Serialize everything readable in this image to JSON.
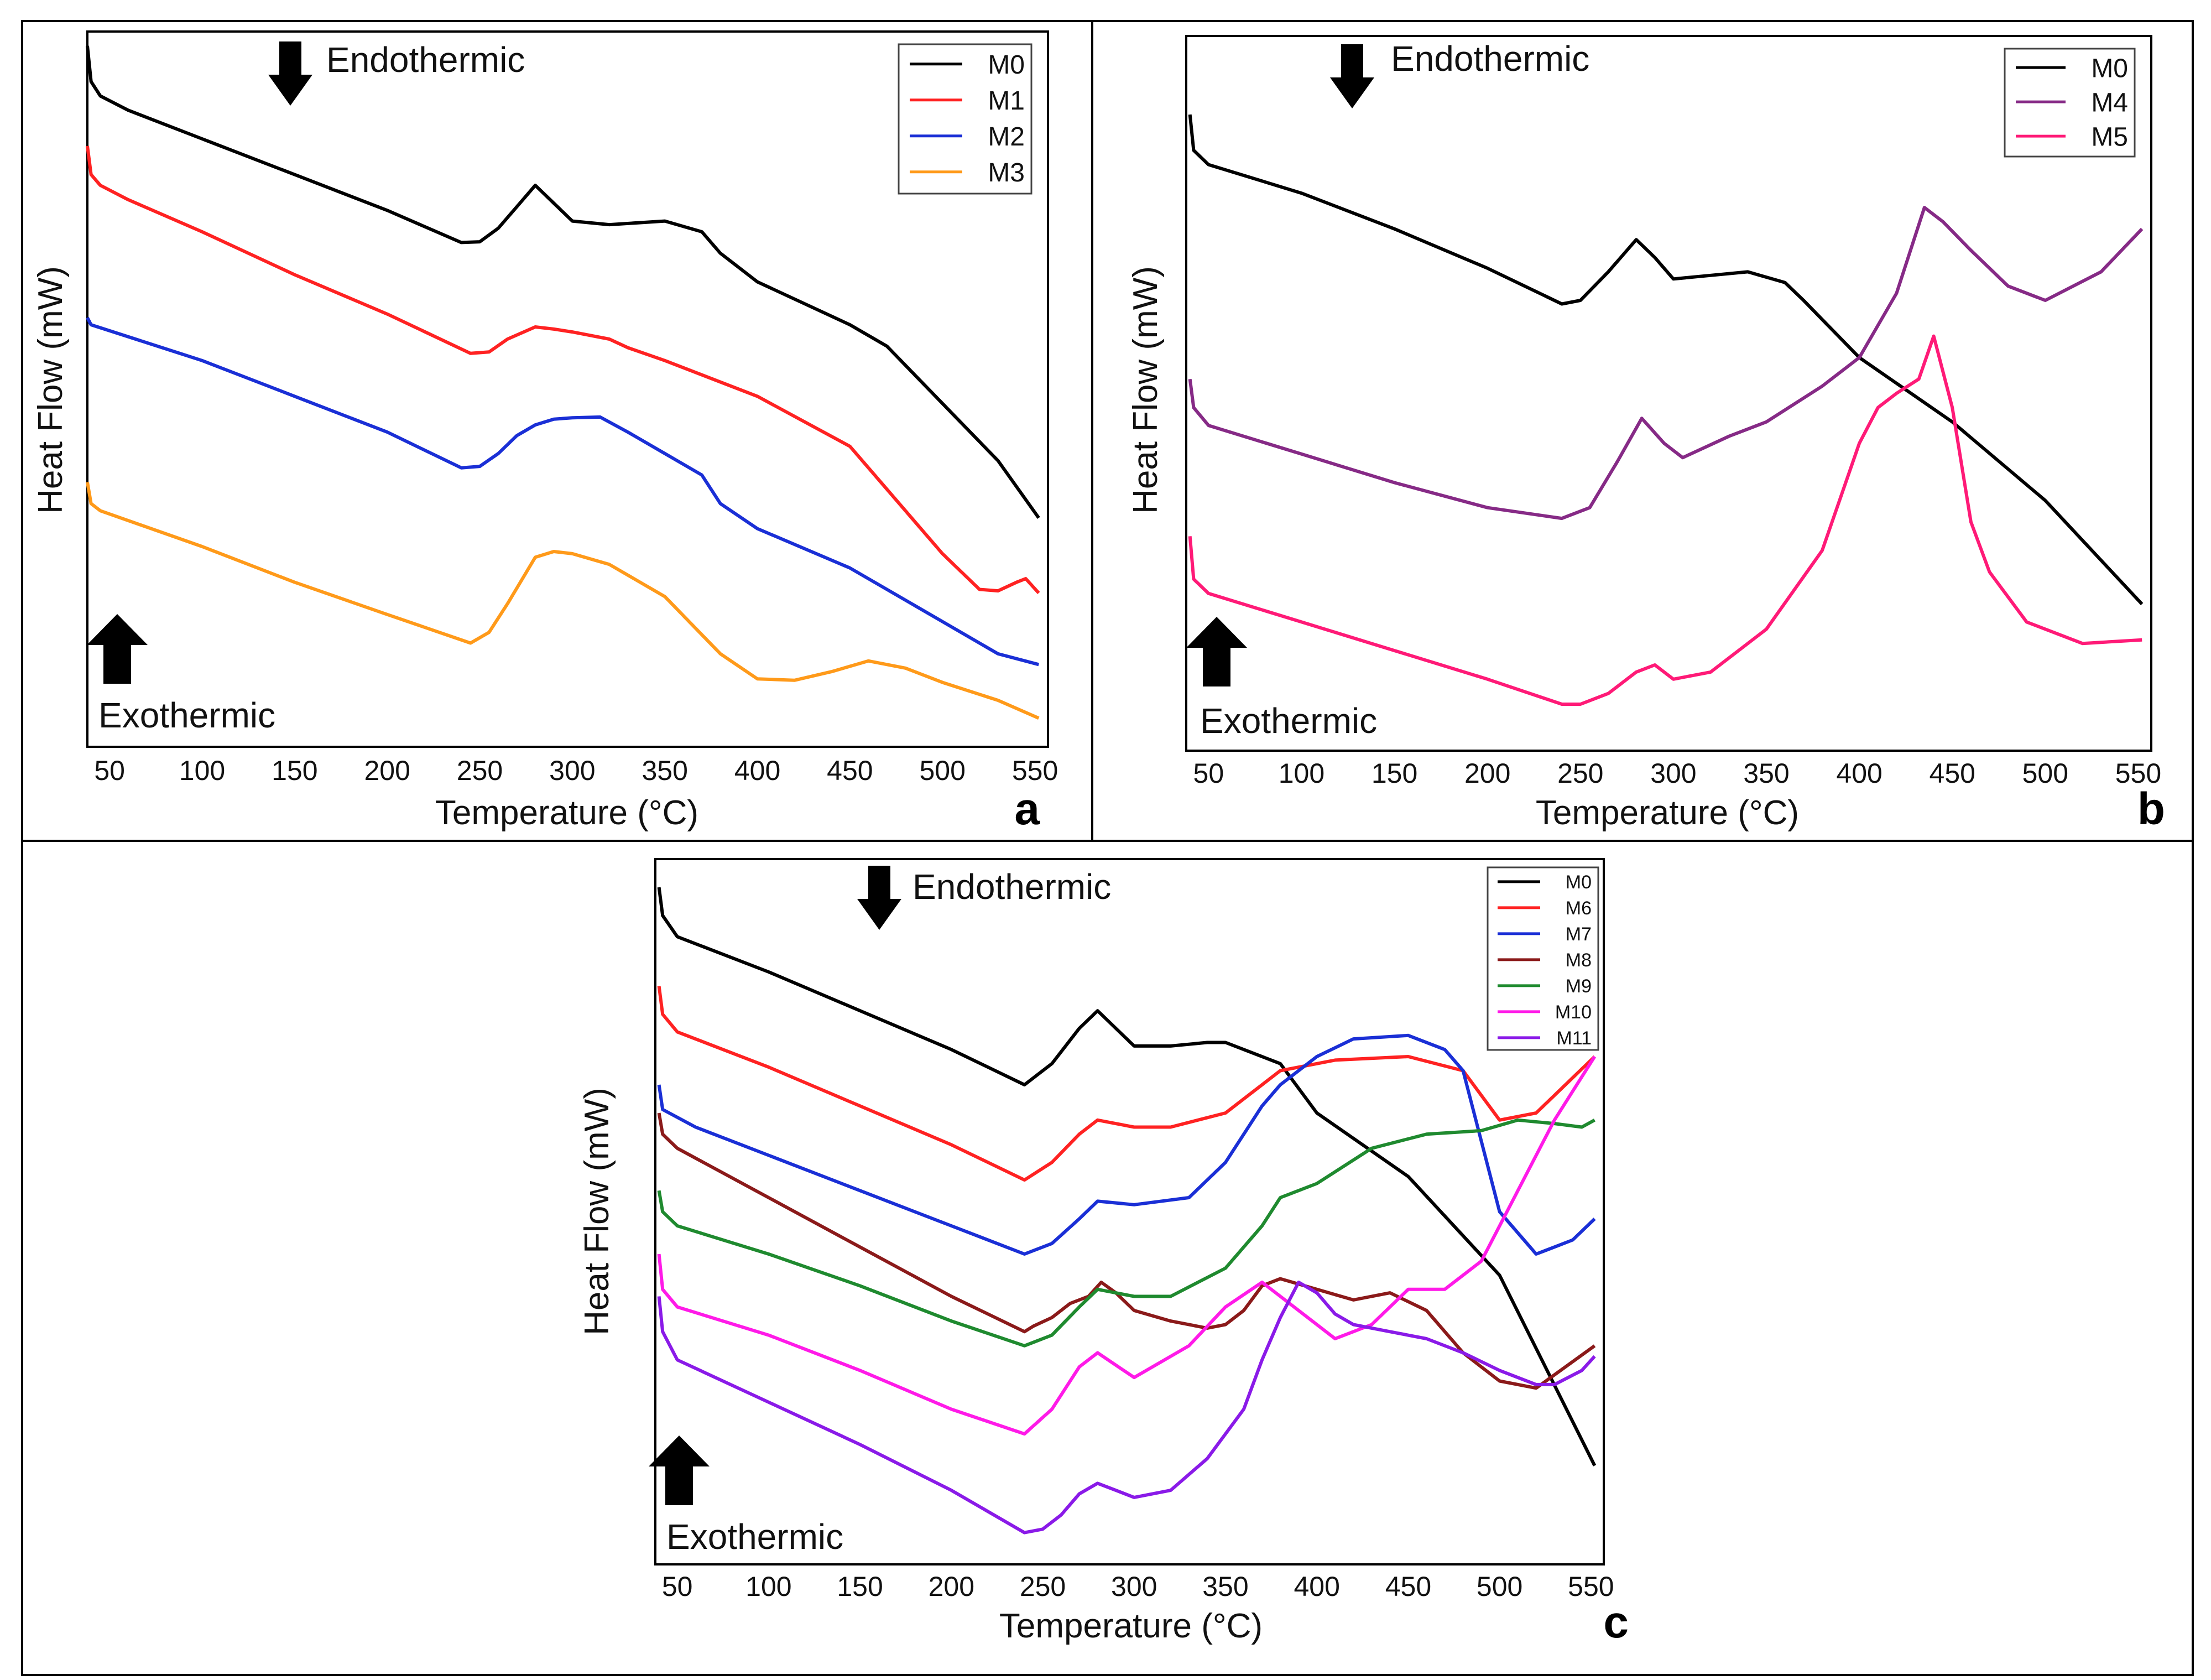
{
  "axis_labels": {
    "x": "Temperature (°C)",
    "y": "Heat Flow (mW)"
  },
  "annotations": {
    "endo": "Endothermic",
    "exo": "Exothermic"
  },
  "chart_data": [
    {
      "id": "a",
      "type": "line",
      "letter": "a",
      "xlabel": "Temperature (°C)",
      "ylabel": "Heat Flow (mW)",
      "xlim": [
        38,
        557
      ],
      "ylim": [
        0,
        100
      ],
      "xticks": [
        "50",
        "100",
        "150",
        "200",
        "250",
        "300",
        "350",
        "400",
        "450",
        "500",
        "550"
      ],
      "grid": false,
      "legend_position": "top-right",
      "series": [
        {
          "name": "M0",
          "color": "#000000",
          "x": [
            38,
            40,
            45,
            60,
            100,
            150,
            200,
            240,
            250,
            260,
            270,
            280,
            290,
            300,
            320,
            350,
            370,
            380,
            400,
            450,
            470,
            500,
            530,
            552
          ],
          "y": [
            98,
            93,
            91,
            89,
            85,
            80,
            75,
            70.5,
            70.6,
            72.5,
            75.5,
            78.5,
            76,
            73.5,
            73,
            73.5,
            72,
            69,
            65,
            59,
            56,
            48,
            40,
            32
          ]
        },
        {
          "name": "M1",
          "color": "#ff2222",
          "x": [
            38,
            40,
            45,
            60,
            100,
            150,
            200,
            245,
            255,
            265,
            280,
            290,
            300,
            320,
            330,
            350,
            400,
            450,
            470,
            500,
            520,
            530,
            540,
            545,
            552
          ],
          "y": [
            84,
            80,
            78.5,
            76.5,
            72,
            66,
            60.5,
            55,
            55.2,
            57,
            58.7,
            58.4,
            58,
            57,
            55.8,
            54,
            49,
            42,
            36,
            27,
            22,
            21.8,
            23,
            23.5,
            21.5
          ]
        },
        {
          "name": "M2",
          "color": "#1a2fd6",
          "x": [
            38,
            40,
            100,
            150,
            200,
            240,
            250,
            260,
            270,
            280,
            290,
            300,
            315,
            330,
            350,
            360,
            370,
            380,
            400,
            450,
            500,
            530,
            552
          ],
          "y": [
            60,
            59,
            54,
            49,
            44,
            39,
            39.2,
            41,
            43.5,
            45,
            45.8,
            46,
            46.1,
            44,
            41,
            39.5,
            38,
            34,
            30.5,
            25,
            17.5,
            13,
            11.5
          ]
        },
        {
          "name": "M3",
          "color": "#ff9a1a",
          "x": [
            38,
            40,
            45,
            100,
            150,
            200,
            245,
            255,
            265,
            280,
            290,
            300,
            320,
            350,
            380,
            400,
            420,
            440,
            460,
            480,
            500,
            530,
            552
          ],
          "y": [
            37,
            34,
            33,
            28,
            23,
            18.5,
            14.5,
            16,
            20,
            26.5,
            27.3,
            27,
            25.5,
            21,
            13,
            9.5,
            9.3,
            10.5,
            12,
            11,
            9,
            6.5,
            4
          ]
        }
      ]
    },
    {
      "id": "b",
      "type": "line",
      "letter": "b",
      "xlabel": "Temperature (°C)",
      "ylabel": "Heat Flow (mW)",
      "xlim": [
        38,
        557
      ],
      "ylim": [
        0,
        100
      ],
      "xticks": [
        "50",
        "100",
        "150",
        "200",
        "250",
        "300",
        "350",
        "400",
        "450",
        "500",
        "550"
      ],
      "grid": false,
      "legend_position": "top-right",
      "series": [
        {
          "name": "M0",
          "color": "#000000",
          "x": [
            40,
            42,
            50,
            100,
            150,
            200,
            240,
            250,
            265,
            280,
            290,
            300,
            320,
            340,
            360,
            370,
            400,
            450,
            500,
            552
          ],
          "y": [
            89,
            84,
            82,
            78,
            73,
            67.5,
            62.5,
            63,
            67,
            71.5,
            69,
            66,
            66.5,
            67,
            65.5,
            63,
            55,
            46,
            35,
            20.5
          ]
        },
        {
          "name": "M4",
          "color": "#862a86",
          "x": [
            40,
            42,
            50,
            100,
            150,
            200,
            240,
            255,
            270,
            283,
            295,
            305,
            330,
            350,
            380,
            400,
            420,
            435,
            445,
            460,
            480,
            500,
            530,
            552
          ],
          "y": [
            52,
            48,
            45.5,
            41.5,
            37.5,
            34,
            32.5,
            34,
            40.5,
            46.5,
            43,
            41,
            44,
            46,
            51,
            55,
            64,
            76,
            74,
            70,
            65,
            63,
            67,
            73
          ]
        },
        {
          "name": "M5",
          "color": "#ff1a77",
          "x": [
            40,
            42,
            50,
            100,
            150,
            200,
            240,
            250,
            265,
            280,
            290,
            300,
            320,
            350,
            380,
            400,
            410,
            420,
            432,
            440,
            450,
            460,
            470,
            490,
            520,
            552
          ],
          "y": [
            30,
            24,
            22,
            18,
            14,
            10,
            6.5,
            6.5,
            8,
            11,
            12,
            10,
            11,
            17,
            28,
            43,
            48,
            50,
            52,
            58,
            48,
            32,
            25,
            18,
            15,
            15.5
          ]
        }
      ]
    },
    {
      "id": "c",
      "type": "line",
      "letter": "c",
      "xlabel": "Temperature (°C)",
      "ylabel": "Heat Flow (mW)",
      "xlim": [
        38,
        557
      ],
      "ylim": [
        0,
        100
      ],
      "xticks": [
        "50",
        "100",
        "150",
        "200",
        "250",
        "300",
        "350",
        "400",
        "450",
        "500",
        "550"
      ],
      "grid": false,
      "legend_position": "top-right",
      "series": [
        {
          "name": "M0",
          "color": "#000000",
          "x": [
            40,
            42,
            50,
            100,
            150,
            200,
            240,
            255,
            270,
            280,
            290,
            300,
            320,
            340,
            350,
            380,
            400,
            450,
            500,
            552
          ],
          "y": [
            96,
            92,
            89,
            84,
            78.5,
            73,
            68,
            71,
            76,
            78.5,
            76,
            73.5,
            73.5,
            74,
            74,
            71,
            64,
            55,
            41,
            14
          ]
        },
        {
          "name": "M6",
          "color": "#ff2222",
          "x": [
            40,
            42,
            50,
            100,
            150,
            200,
            240,
            255,
            270,
            280,
            300,
            320,
            350,
            380,
            400,
            410,
            450,
            480,
            500,
            520,
            552
          ],
          "y": [
            82,
            78,
            75.5,
            70.5,
            65,
            59.5,
            54.5,
            57,
            61,
            63,
            62,
            62,
            64,
            70,
            71,
            71.5,
            72,
            70,
            63,
            64,
            72
          ]
        },
        {
          "name": "M7",
          "color": "#1a2fd6",
          "x": [
            40,
            42,
            60,
            100,
            150,
            200,
            240,
            255,
            270,
            280,
            300,
            330,
            350,
            370,
            380,
            400,
            420,
            450,
            470,
            480,
            490,
            500,
            520,
            530,
            540,
            552
          ],
          "y": [
            68,
            64.5,
            62,
            58,
            53,
            48,
            44,
            45.5,
            49,
            51.5,
            51,
            52,
            57,
            65,
            68,
            72,
            74.5,
            75,
            73,
            70,
            60,
            50,
            44,
            45,
            46,
            49
          ]
        },
        {
          "name": "M8",
          "color": "#8b1a1a",
          "x": [
            40,
            42,
            50,
            100,
            150,
            200,
            240,
            245,
            255,
            265,
            275,
            282,
            290,
            300,
            320,
            340,
            350,
            360,
            370,
            380,
            400,
            420,
            440,
            460,
            480,
            500,
            520,
            552
          ],
          "y": [
            64,
            61,
            59,
            52,
            45,
            38,
            33,
            33.8,
            35,
            37,
            38,
            40,
            38.5,
            36,
            34.5,
            33.5,
            34,
            36,
            39.5,
            40.5,
            39,
            37.5,
            38.5,
            36,
            30,
            26,
            25,
            31
          ]
        },
        {
          "name": "M9",
          "color": "#1f8a2f",
          "x": [
            40,
            42,
            50,
            100,
            150,
            200,
            240,
            255,
            270,
            280,
            300,
            320,
            350,
            370,
            380,
            400,
            430,
            460,
            490,
            510,
            530,
            545,
            552
          ],
          "y": [
            53,
            50,
            48,
            44,
            39.5,
            34.5,
            31,
            32.5,
            36.5,
            39,
            38,
            38,
            42,
            48,
            52,
            54,
            59,
            61,
            61.5,
            63,
            62.5,
            62,
            63
          ]
        },
        {
          "name": "M10",
          "color": "#ff1ae8",
          "x": [
            40,
            42,
            50,
            100,
            150,
            200,
            240,
            255,
            270,
            280,
            300,
            330,
            350,
            370,
            390,
            410,
            430,
            450,
            470,
            490,
            510,
            530,
            552
          ],
          "y": [
            44,
            39,
            36.5,
            32.5,
            27.5,
            22,
            18.5,
            22,
            28,
            30,
            26.5,
            31,
            36.5,
            40,
            36,
            32,
            34,
            39,
            39,
            43,
            53,
            63,
            72
          ]
        },
        {
          "name": "M11",
          "color": "#8a1ae8",
          "x": [
            40,
            42,
            50,
            100,
            150,
            200,
            240,
            250,
            260,
            270,
            280,
            290,
            300,
            320,
            340,
            360,
            370,
            380,
            390,
            400,
            410,
            420,
            440,
            460,
            480,
            500,
            520,
            530,
            545,
            552
          ],
          "y": [
            38,
            33,
            29,
            23,
            17,
            10.5,
            4.5,
            5,
            7,
            10,
            11.5,
            10.5,
            9.5,
            10.5,
            15,
            22,
            29,
            35,
            40,
            38.5,
            35.5,
            34,
            33,
            32,
            30,
            27.5,
            25.5,
            25.5,
            27.5,
            29.5
          ]
        }
      ]
    }
  ]
}
